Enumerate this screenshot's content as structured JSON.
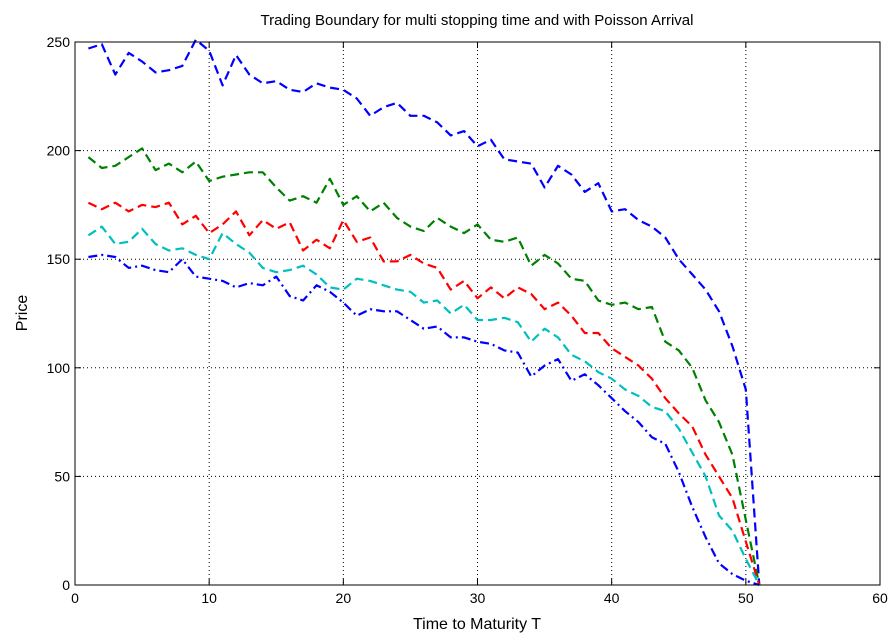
{
  "chart_data": {
    "type": "line",
    "title": "Trading Boundary for multi stopping time and with Poisson Arrival",
    "xlabel": "Time to Maturity T",
    "ylabel": "Price",
    "xlim": [
      0,
      60
    ],
    "ylim": [
      0,
      250
    ],
    "xticks": [
      0,
      10,
      20,
      30,
      40,
      50,
      60
    ],
    "yticks": [
      0,
      50,
      100,
      150,
      200,
      250
    ],
    "grid": true,
    "series": [
      {
        "color": "#0000ff",
        "style": "dashed",
        "x": [
          1,
          2,
          3,
          4,
          5,
          6,
          7,
          8,
          9,
          10,
          11,
          12,
          13,
          14,
          15,
          16,
          17,
          18,
          19,
          20,
          21,
          22,
          23,
          24,
          25,
          26,
          27,
          28,
          29,
          30,
          31,
          32,
          33,
          34,
          35,
          36,
          37,
          38,
          39,
          40,
          41,
          42,
          43,
          44,
          45,
          46,
          47,
          48,
          49,
          50,
          51
        ],
        "y": [
          247,
          249,
          235,
          245,
          241,
          236,
          237,
          239,
          251,
          246,
          230,
          244,
          235,
          231,
          232,
          228,
          227,
          231,
          229,
          228,
          224,
          216,
          220,
          222,
          216,
          216,
          213,
          207,
          209,
          202,
          205,
          196,
          195,
          194,
          183,
          193,
          189,
          181,
          185,
          172,
          173,
          168,
          165,
          160,
          150,
          143,
          136,
          126,
          110,
          90,
          0
        ]
      },
      {
        "color": "#008000",
        "style": "dashed",
        "x": [
          1,
          2,
          3,
          4,
          5,
          6,
          7,
          8,
          9,
          10,
          11,
          12,
          13,
          14,
          15,
          16,
          17,
          18,
          19,
          20,
          21,
          22,
          23,
          24,
          25,
          26,
          27,
          28,
          29,
          30,
          31,
          32,
          33,
          34,
          35,
          36,
          37,
          38,
          39,
          40,
          41,
          42,
          43,
          44,
          45,
          46,
          47,
          48,
          49,
          50,
          51
        ],
        "y": [
          197,
          192,
          193,
          197,
          201,
          191,
          194,
          190,
          195,
          186,
          188,
          189,
          190,
          190,
          183,
          177,
          179,
          176,
          187,
          175,
          179,
          172,
          176,
          169,
          165,
          163,
          169,
          165,
          162,
          166,
          159,
          158,
          160,
          147,
          152,
          148,
          141,
          140,
          131,
          129,
          130,
          127,
          128,
          112,
          108,
          100,
          85,
          75,
          60,
          30,
          0
        ]
      },
      {
        "color": "#ff0000",
        "style": "dashed",
        "x": [
          1,
          2,
          3,
          4,
          5,
          6,
          7,
          8,
          9,
          10,
          11,
          12,
          13,
          14,
          15,
          16,
          17,
          18,
          19,
          20,
          21,
          22,
          23,
          24,
          25,
          26,
          27,
          28,
          29,
          30,
          31,
          32,
          33,
          34,
          35,
          36,
          37,
          38,
          39,
          40,
          41,
          42,
          43,
          44,
          45,
          46,
          47,
          48,
          49,
          50,
          51
        ],
        "y": [
          176,
          173,
          176,
          172,
          175,
          174,
          176,
          166,
          170,
          162,
          166,
          172,
          161,
          168,
          164,
          167,
          154,
          159,
          155,
          168,
          158,
          160,
          149,
          149,
          152,
          148,
          146,
          136,
          140,
          132,
          137,
          132,
          137,
          134,
          127,
          130,
          124,
          116,
          116,
          109,
          105,
          101,
          95,
          86,
          79,
          73,
          60,
          50,
          40,
          20,
          0
        ]
      },
      {
        "color": "#00bfbf",
        "style": "dashed",
        "x": [
          1,
          2,
          3,
          4,
          5,
          6,
          7,
          8,
          9,
          10,
          11,
          12,
          13,
          14,
          15,
          16,
          17,
          18,
          19,
          20,
          21,
          22,
          23,
          24,
          25,
          26,
          27,
          28,
          29,
          30,
          31,
          32,
          33,
          34,
          35,
          36,
          37,
          38,
          39,
          40,
          41,
          42,
          43,
          44,
          45,
          46,
          47,
          48,
          49,
          50,
          51
        ],
        "y": [
          161,
          165,
          157,
          158,
          164,
          157,
          154,
          155,
          152,
          150,
          162,
          157,
          153,
          146,
          144,
          145,
          147,
          143,
          137,
          136,
          141,
          140,
          138,
          136,
          135,
          130,
          131,
          125,
          129,
          122,
          122,
          123,
          121,
          112,
          118,
          114,
          106,
          103,
          98,
          95,
          90,
          87,
          82,
          80,
          72,
          61,
          50,
          32,
          25,
          12,
          0
        ]
      },
      {
        "color": "#0000ff",
        "style": "dashdot",
        "x": [
          1,
          2,
          3,
          4,
          5,
          6,
          7,
          8,
          9,
          10,
          11,
          12,
          13,
          14,
          15,
          16,
          17,
          18,
          19,
          20,
          21,
          22,
          23,
          24,
          25,
          26,
          27,
          28,
          29,
          30,
          31,
          32,
          33,
          34,
          35,
          36,
          37,
          38,
          39,
          40,
          41,
          42,
          43,
          44,
          45,
          46,
          47,
          48,
          49,
          50,
          51
        ],
        "y": [
          151,
          152,
          151,
          146,
          147,
          145,
          144,
          150,
          142,
          141,
          140,
          137,
          139,
          138,
          142,
          133,
          131,
          138,
          135,
          130,
          124,
          127,
          126,
          126,
          122,
          118,
          119,
          114,
          114,
          112,
          111,
          108,
          107,
          96,
          101,
          104,
          94,
          97,
          92,
          86,
          80,
          75,
          68,
          65,
          52,
          36,
          22,
          10,
          5,
          2,
          0
        ]
      }
    ]
  }
}
